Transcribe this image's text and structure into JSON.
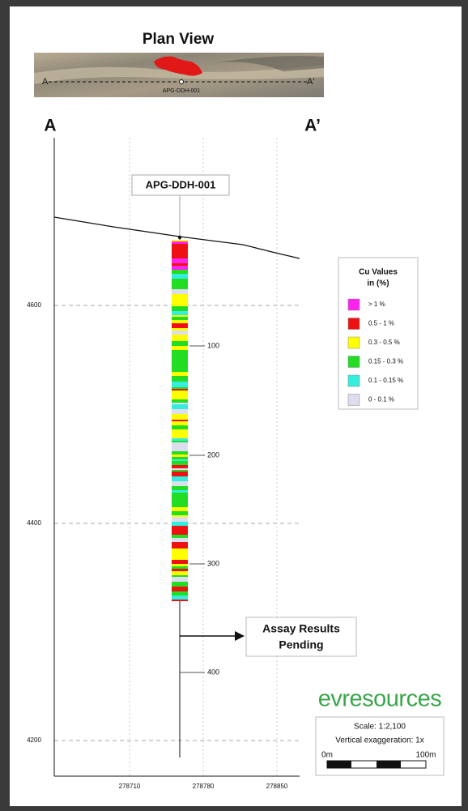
{
  "plan_view": {
    "title": "Plan View",
    "label_a": "A",
    "label_a_prime": "A'",
    "hole_label": "APG-DDH-001"
  },
  "section": {
    "label_a": "A",
    "label_a_prime": "A’",
    "hole_label": "APG-DDH-001",
    "elevation_labels": [
      "4600",
      "4400",
      "4200"
    ],
    "easting_labels": [
      "278710",
      "278780",
      "278850"
    ],
    "depth_labels": [
      "100",
      "200",
      "300",
      "400"
    ],
    "callout": [
      "Assay Results",
      "Pending"
    ]
  },
  "legend": {
    "title": [
      "Cu Values",
      "in (%)"
    ],
    "items": [
      {
        "label": "> 1 %",
        "color": "#ff22ee"
      },
      {
        "label": "0.5 - 1 %",
        "color": "#ee1111"
      },
      {
        "label": "0.3 - 0.5 %",
        "color": "#ffff00"
      },
      {
        "label": "0.15 - 0.3 %",
        "color": "#22dd22"
      },
      {
        "label": "0.1 - 0.15 %",
        "color": "#33eedd"
      },
      {
        "label": "0 - 0.1 %",
        "color": "#ddddf0"
      }
    ]
  },
  "logo": "evresources",
  "scale": {
    "ratio": "Scale: 1:2,100",
    "exaggeration": "Vertical exaggeration: 1x",
    "start": "0m",
    "end": "100m"
  }
}
